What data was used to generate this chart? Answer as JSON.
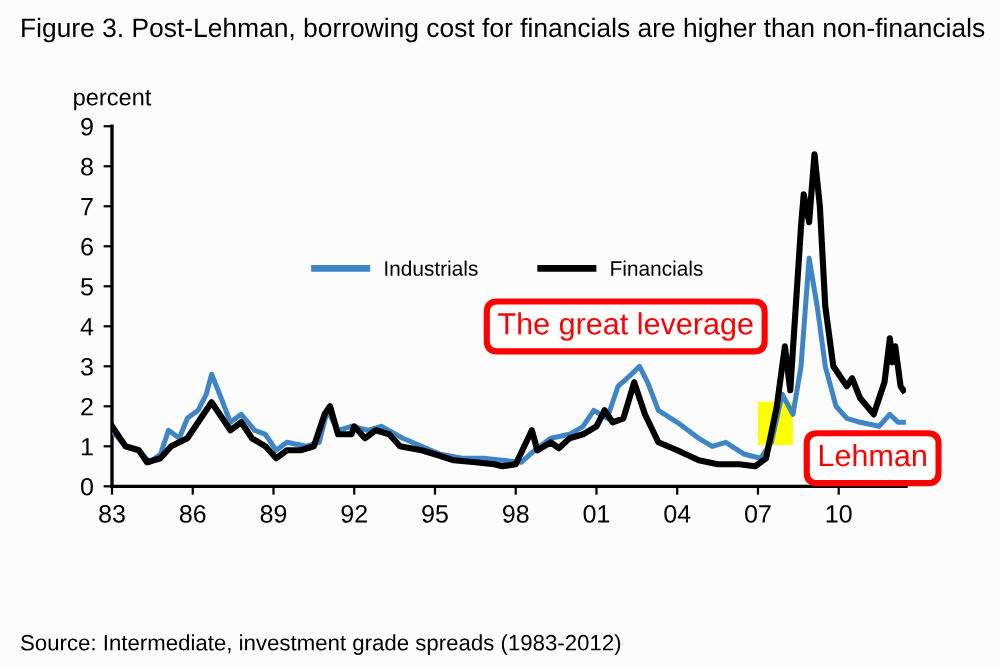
{
  "chart_data": {
    "type": "line",
    "title": "Figure 3. Post-Lehman, borrowing cost for financials are higher than non-financials",
    "ylabel": "percent",
    "xlim": [
      1983,
      2012.5
    ],
    "xticks": [
      {
        "value": 1983,
        "label": "83"
      },
      {
        "value": 1986,
        "label": "86"
      },
      {
        "value": 1989,
        "label": "89"
      },
      {
        "value": 1992,
        "label": "92"
      },
      {
        "value": 1995,
        "label": "95"
      },
      {
        "value": 1998,
        "label": "98"
      },
      {
        "value": 2001,
        "label": "01"
      },
      {
        "value": 2004,
        "label": "04"
      },
      {
        "value": 2007,
        "label": "07"
      },
      {
        "value": 2010,
        "label": "10"
      }
    ],
    "ylim": [
      0,
      9
    ],
    "yticks": [
      0,
      1,
      2,
      3,
      4,
      5,
      6,
      7,
      8,
      9
    ],
    "grid": false,
    "legend": "center",
    "marker": "none",
    "line_style": "solid",
    "series": [
      {
        "name": "Industrials",
        "color": "#3d85c6",
        "x": [
          1983.0,
          1983.5,
          1984.0,
          1984.4,
          1984.8,
          1985.1,
          1985.5,
          1985.8,
          1986.2,
          1986.5,
          1986.7,
          1987.0,
          1987.4,
          1987.8,
          1988.3,
          1988.7,
          1989.1,
          1989.5,
          1990.2,
          1990.7,
          1991.0,
          1991.4,
          1991.9,
          1992.5,
          1993.0,
          1993.8,
          1994.5,
          1995.2,
          1996.0,
          1996.8,
          1997.5,
          1998.2,
          1998.7,
          1999.3,
          2000.0,
          2000.5,
          2000.9,
          2001.4,
          2001.8,
          2002.3,
          2002.6,
          2002.9,
          2003.3,
          2004.0,
          2004.8,
          2005.3,
          2005.8,
          2006.5,
          2007.1,
          2007.5,
          2007.9,
          2008.3,
          2008.6,
          2008.9,
          2009.2,
          2009.5,
          2009.9,
          2010.3,
          2010.8,
          2011.5,
          2011.9,
          2012.2,
          2012.4
        ],
        "values": [
          1.4,
          1.0,
          0.9,
          0.6,
          0.8,
          1.4,
          1.2,
          1.7,
          1.9,
          2.3,
          2.8,
          2.3,
          1.6,
          1.8,
          1.4,
          1.3,
          0.9,
          1.1,
          1.0,
          1.1,
          1.9,
          1.4,
          1.5,
          1.4,
          1.5,
          1.2,
          1.0,
          0.8,
          0.7,
          0.7,
          0.65,
          0.6,
          0.9,
          1.2,
          1.3,
          1.5,
          1.9,
          1.7,
          2.5,
          2.8,
          3.0,
          2.6,
          1.9,
          1.6,
          1.2,
          1.0,
          1.1,
          0.8,
          0.7,
          1.1,
          2.3,
          1.8,
          3.0,
          5.7,
          4.5,
          3.0,
          2.0,
          1.7,
          1.6,
          1.5,
          1.8,
          1.6,
          1.6
        ]
      },
      {
        "name": "Financials",
        "color": "#000000",
        "x": [
          1983.0,
          1983.5,
          1984.0,
          1984.3,
          1984.8,
          1985.2,
          1985.8,
          1986.3,
          1986.7,
          1987.0,
          1987.4,
          1987.8,
          1988.2,
          1988.7,
          1989.1,
          1989.5,
          1990.0,
          1990.5,
          1990.9,
          1991.1,
          1991.4,
          1991.9,
          1992.0,
          1992.4,
          1992.8,
          1993.3,
          1993.7,
          1994.5,
          1995.0,
          1995.7,
          1996.5,
          1997.2,
          1997.5,
          1998.0,
          1998.6,
          1998.8,
          1999.3,
          1999.6,
          2000.0,
          2000.5,
          2001.0,
          2001.3,
          2001.6,
          2002.0,
          2002.4,
          2002.8,
          2003.3,
          2004.0,
          2004.8,
          2005.5,
          2006.3,
          2006.9,
          2007.3,
          2007.7,
          2008.0,
          2008.2,
          2008.6,
          2008.7,
          2008.9,
          2009.1,
          2009.3,
          2009.5,
          2009.8,
          2010.3,
          2010.5,
          2010.8,
          2011.3,
          2011.7,
          2011.9,
          2012.0,
          2012.1,
          2012.3,
          2012.4
        ],
        "values": [
          1.5,
          1.0,
          0.9,
          0.6,
          0.7,
          1.0,
          1.2,
          1.7,
          2.1,
          1.8,
          1.4,
          1.6,
          1.2,
          1.0,
          0.7,
          0.9,
          0.9,
          1.0,
          1.8,
          2.0,
          1.3,
          1.3,
          1.5,
          1.2,
          1.4,
          1.3,
          1.0,
          0.9,
          0.8,
          0.65,
          0.6,
          0.55,
          0.5,
          0.55,
          1.4,
          0.9,
          1.1,
          0.95,
          1.2,
          1.3,
          1.5,
          1.9,
          1.6,
          1.7,
          2.6,
          1.8,
          1.1,
          0.9,
          0.65,
          0.55,
          0.55,
          0.5,
          0.7,
          2.0,
          3.5,
          2.4,
          6.5,
          7.3,
          6.6,
          8.3,
          7.0,
          4.5,
          3.0,
          2.5,
          2.7,
          2.2,
          1.8,
          2.6,
          3.7,
          3.1,
          3.5,
          2.5,
          2.4
        ]
      }
    ],
    "bands": [
      {
        "axis": "x",
        "from": 2007,
        "to": 2008.3,
        "color": "#ffff00"
      }
    ],
    "annotations": [
      "The great leverage",
      "Lehman",
      "Source: Intermediate, investment grade spreads (1983-2012)"
    ]
  }
}
